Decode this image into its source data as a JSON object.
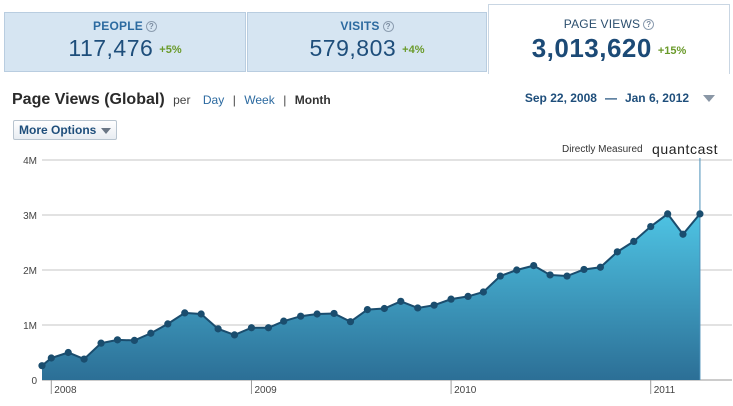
{
  "tabs": [
    {
      "label": "PEOPLE",
      "value": "117,476",
      "change": "+5%",
      "active": false
    },
    {
      "label": "VISITS",
      "value": "579,803",
      "change": "+4%",
      "active": false
    },
    {
      "label": "PAGE VIEWS",
      "value": "3,013,620",
      "change": "+15%",
      "active": true
    }
  ],
  "help_glyph": "?",
  "header": {
    "title": "Page Views (Global)",
    "per": "per",
    "periods": [
      "Day",
      "Week",
      "Month"
    ],
    "selected_period": "Month",
    "separator": "|",
    "date_start": "Sep 22, 2008",
    "date_sep": "—",
    "date_end": "Jan 6, 2012"
  },
  "more_options_label": "More Options",
  "badge": {
    "measured": "Directly Measured",
    "brand": "quantcast"
  },
  "colors": {
    "line": "#1a4d6e",
    "fill_top": "#4ec3e3",
    "fill_bottom": "#2c6f96",
    "grid": "#c6c6c6",
    "accent": "#1e4e7b"
  },
  "chart_data": {
    "type": "area",
    "ylabel": "",
    "ylim": [
      0,
      4000000
    ],
    "yticks": [
      {
        "value": 0,
        "label": "0"
      },
      {
        "value": 1000000,
        "label": "1M"
      },
      {
        "value": 2000000,
        "label": "2M"
      },
      {
        "value": 3000000,
        "label": "3M"
      },
      {
        "value": 4000000,
        "label": "4M"
      }
    ],
    "xlim": [
      "2007-12-15",
      "2011-05-15"
    ],
    "xticks": [
      {
        "date": "2008-01-01",
        "label": "2008"
      },
      {
        "date": "2009-01-01",
        "label": "2009"
      },
      {
        "date": "2010-01-01",
        "label": "2010"
      },
      {
        "date": "2011-01-01",
        "label": "2011"
      }
    ],
    "series": [
      {
        "points": [
          [
            "2007-12-15",
            260000
          ],
          [
            "2008-01-01",
            400000
          ],
          [
            "2008-02-01",
            500000
          ],
          [
            "2008-03-01",
            380000
          ],
          [
            "2008-04-01",
            670000
          ],
          [
            "2008-05-01",
            730000
          ],
          [
            "2008-06-01",
            720000
          ],
          [
            "2008-07-01",
            850000
          ],
          [
            "2008-08-01",
            1020000
          ],
          [
            "2008-09-01",
            1220000
          ],
          [
            "2008-10-01",
            1200000
          ],
          [
            "2008-11-01",
            930000
          ],
          [
            "2008-12-01",
            820000
          ],
          [
            "2009-01-01",
            950000
          ],
          [
            "2009-02-01",
            950000
          ],
          [
            "2009-03-01",
            1070000
          ],
          [
            "2009-04-01",
            1160000
          ],
          [
            "2009-05-01",
            1200000
          ],
          [
            "2009-06-01",
            1210000
          ],
          [
            "2009-07-01",
            1060000
          ],
          [
            "2009-08-01",
            1280000
          ],
          [
            "2009-09-01",
            1300000
          ],
          [
            "2009-10-01",
            1430000
          ],
          [
            "2009-11-01",
            1310000
          ],
          [
            "2009-12-01",
            1360000
          ],
          [
            "2010-01-01",
            1470000
          ],
          [
            "2010-02-01",
            1520000
          ],
          [
            "2010-03-01",
            1600000
          ],
          [
            "2010-04-01",
            1890000
          ],
          [
            "2010-05-01",
            2000000
          ],
          [
            "2010-06-01",
            2080000
          ],
          [
            "2010-07-01",
            1910000
          ],
          [
            "2010-08-01",
            1890000
          ],
          [
            "2010-09-01",
            2010000
          ],
          [
            "2010-10-01",
            2050000
          ],
          [
            "2010-11-01",
            2330000
          ],
          [
            "2010-12-01",
            2520000
          ],
          [
            "2011-01-01",
            2790000
          ],
          [
            "2011-02-01",
            3020000
          ],
          [
            "2011-03-01",
            2650000
          ],
          [
            "2011-04-01",
            3020000
          ]
        ]
      }
    ]
  }
}
